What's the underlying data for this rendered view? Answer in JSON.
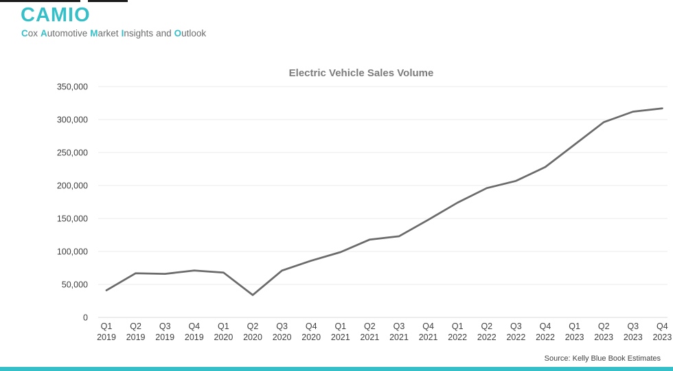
{
  "header": {
    "logo_text": "CAMIO",
    "tagline_words": [
      {
        "lead": "C",
        "rest": "ox"
      },
      {
        "lead": "A",
        "rest": "utomotive"
      },
      {
        "lead": "M",
        "rest": "arket"
      },
      {
        "lead": "I",
        "rest": "nsights"
      },
      {
        "lead": "",
        "rest": "and"
      },
      {
        "lead": "O",
        "rest": "utlook"
      }
    ]
  },
  "chart_data": {
    "type": "line",
    "title": "Electric Vehicle Sales Volume",
    "categories": [
      "Q1 2019",
      "Q2 2019",
      "Q3 2019",
      "Q4 2019",
      "Q1 2020",
      "Q2 2020",
      "Q3 2020",
      "Q4 2020",
      "Q1 2021",
      "Q2 2021",
      "Q3 2021",
      "Q4 2021",
      "Q1 2022",
      "Q2 2022",
      "Q3 2022",
      "Q4 2022",
      "Q1 2023",
      "Q2 2023",
      "Q3 2023",
      "Q4 2023"
    ],
    "x_tick_labels": [
      [
        "Q1",
        "2019"
      ],
      [
        "Q2",
        "2019"
      ],
      [
        "Q3",
        "2019"
      ],
      [
        "Q4",
        "2019"
      ],
      [
        "Q1",
        "2020"
      ],
      [
        "Q2",
        "2020"
      ],
      [
        "Q3",
        "2020"
      ],
      [
        "Q4",
        "2020"
      ],
      [
        "Q1",
        "2021"
      ],
      [
        "Q2",
        "2021"
      ],
      [
        "Q3",
        "2021"
      ],
      [
        "Q4",
        "2021"
      ],
      [
        "Q1",
        "2022"
      ],
      [
        "Q2",
        "2022"
      ],
      [
        "Q3",
        "2022"
      ],
      [
        "Q4",
        "2022"
      ],
      [
        "Q1",
        "2023"
      ],
      [
        "Q2",
        "2023"
      ],
      [
        "Q3",
        "2023"
      ],
      [
        "Q4",
        "2023"
      ]
    ],
    "values": [
      41000,
      67000,
      66000,
      71000,
      68000,
      34000,
      71000,
      86000,
      99000,
      118000,
      123000,
      148000,
      174000,
      196000,
      207000,
      228000,
      262000,
      296000,
      312000,
      317000
    ],
    "xlabel": "",
    "ylabel": "",
    "ylim": [
      0,
      350000
    ],
    "y_ticks": [
      0,
      50000,
      100000,
      150000,
      200000,
      250000,
      300000,
      350000
    ],
    "y_tick_labels": [
      "0",
      "50,000",
      "100,000",
      "150,000",
      "200,000",
      "250,000",
      "300,000",
      "350,000"
    ],
    "grid": true,
    "legend": "none",
    "line_color": "#6B6B6B"
  },
  "source_note": "Source: Kelly Blue Book Estimates",
  "colors": {
    "accent_teal": "#35BFC8",
    "tagline_gray": "#6A6C6E",
    "title_gray": "#7C7C7C",
    "axis_text": "#3E3E3E",
    "gridline": "#EBEBEB",
    "axis_line": "#D8D8D8"
  }
}
